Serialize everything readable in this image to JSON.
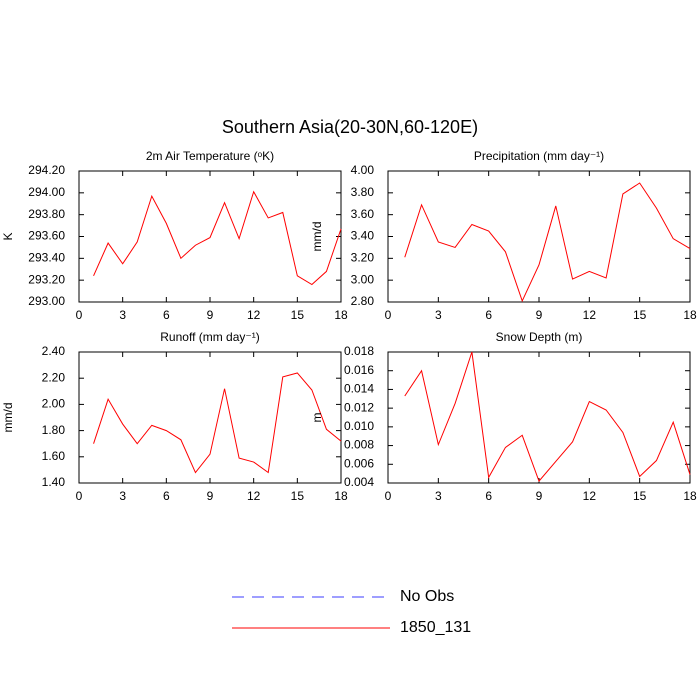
{
  "title": "Southern Asia(20-30N,60-120E)",
  "legend": [
    {
      "name": "No Obs",
      "color": "#3c3cff",
      "dashed": true
    },
    {
      "name": "1850_131",
      "color": "#ff0000",
      "dashed": false
    }
  ],
  "chart_data": [
    {
      "type": "line",
      "title": "2m Air Temperature (ᵒK)",
      "y_label": "K",
      "x": [
        1,
        2,
        3,
        4,
        5,
        6,
        7,
        8,
        9,
        10,
        11,
        12,
        13,
        14,
        15,
        16,
        17,
        18
      ],
      "series": [
        {
          "color": "#ff0000",
          "values": [
            293.24,
            293.54,
            293.35,
            293.55,
            293.97,
            293.72,
            293.4,
            293.52,
            293.59,
            293.91,
            293.58,
            294.01,
            293.77,
            293.82,
            293.24,
            293.16,
            293.28,
            293.67
          ]
        }
      ],
      "xlim": [
        0,
        18
      ],
      "xticks": [
        0,
        3,
        6,
        9,
        12,
        15,
        18
      ],
      "ylim": [
        293,
        294.2
      ],
      "yticks": [
        {
          "value": 293,
          "label": "293.00"
        },
        {
          "value": 293.2,
          "label": "293.20"
        },
        {
          "value": 293.4,
          "label": "293.40"
        },
        {
          "value": 293.6,
          "label": "293.60"
        },
        {
          "value": 293.8,
          "label": "293.80"
        },
        {
          "value": 294,
          "label": "294.00"
        },
        {
          "value": 294.2,
          "label": "294.20"
        }
      ]
    },
    {
      "type": "line",
      "title": "Precipitation (mm day⁻¹)",
      "y_label": "mm/d",
      "x": [
        1,
        2,
        3,
        4,
        5,
        6,
        7,
        8,
        9,
        10,
        11,
        12,
        13,
        14,
        15,
        16,
        17,
        18
      ],
      "series": [
        {
          "color": "#ff0000",
          "values": [
            3.21,
            3.69,
            3.35,
            3.3,
            3.51,
            3.45,
            3.26,
            2.81,
            3.14,
            3.68,
            3.01,
            3.08,
            3.02,
            3.79,
            3.89,
            3.66,
            3.38,
            3.29
          ]
        }
      ],
      "xlim": [
        0,
        18
      ],
      "xticks": [
        0,
        3,
        6,
        9,
        12,
        15,
        18
      ],
      "ylim": [
        2.8,
        4.0
      ],
      "yticks": [
        {
          "value": 2.8,
          "label": "2.80"
        },
        {
          "value": 3.0,
          "label": "3.00"
        },
        {
          "value": 3.2,
          "label": "3.20"
        },
        {
          "value": 3.4,
          "label": "3.40"
        },
        {
          "value": 3.6,
          "label": "3.60"
        },
        {
          "value": 3.8,
          "label": "3.80"
        },
        {
          "value": 4.0,
          "label": "4.00"
        }
      ]
    },
    {
      "type": "line",
      "title": "Runoff (mm day⁻¹)",
      "y_label": "mm/d",
      "x": [
        1,
        2,
        3,
        4,
        5,
        6,
        7,
        8,
        9,
        10,
        11,
        12,
        13,
        14,
        15,
        16,
        17,
        18
      ],
      "series": [
        {
          "color": "#ff0000",
          "values": [
            1.7,
            2.04,
            1.85,
            1.7,
            1.84,
            1.8,
            1.73,
            1.48,
            1.62,
            2.12,
            1.59,
            1.56,
            1.48,
            2.21,
            2.24,
            2.11,
            1.81,
            1.72
          ]
        }
      ],
      "xlim": [
        0,
        18
      ],
      "xticks": [
        0,
        3,
        6,
        9,
        12,
        15,
        18
      ],
      "ylim": [
        1.4,
        2.4
      ],
      "yticks": [
        {
          "value": 1.4,
          "label": "1.40"
        },
        {
          "value": 1.6,
          "label": "1.60"
        },
        {
          "value": 1.8,
          "label": "1.80"
        },
        {
          "value": 2.0,
          "label": "2.00"
        },
        {
          "value": 2.2,
          "label": "2.20"
        },
        {
          "value": 2.4,
          "label": "2.40"
        }
      ]
    },
    {
      "type": "line",
      "title": "Snow Depth (m)",
      "y_label": "m",
      "x": [
        1,
        2,
        3,
        4,
        5,
        6,
        7,
        8,
        9,
        10,
        11,
        12,
        13,
        14,
        15,
        16,
        17,
        18
      ],
      "series": [
        {
          "color": "#ff0000",
          "values": [
            0.0133,
            0.016,
            0.0081,
            0.0125,
            0.018,
            0.0046,
            0.0078,
            0.0091,
            0.0042,
            0.0063,
            0.0084,
            0.0127,
            0.0118,
            0.0094,
            0.0047,
            0.0064,
            0.0105,
            0.0049
          ]
        }
      ],
      "xlim": [
        0,
        18
      ],
      "xticks": [
        0,
        3,
        6,
        9,
        12,
        15,
        18
      ],
      "ylim": [
        0.004,
        0.018
      ],
      "yticks": [
        0.004,
        0.006,
        0.008,
        {
          "value": 0.01,
          "label": "0.010"
        },
        0.012,
        0.014,
        0.016,
        0.018
      ]
    }
  ]
}
